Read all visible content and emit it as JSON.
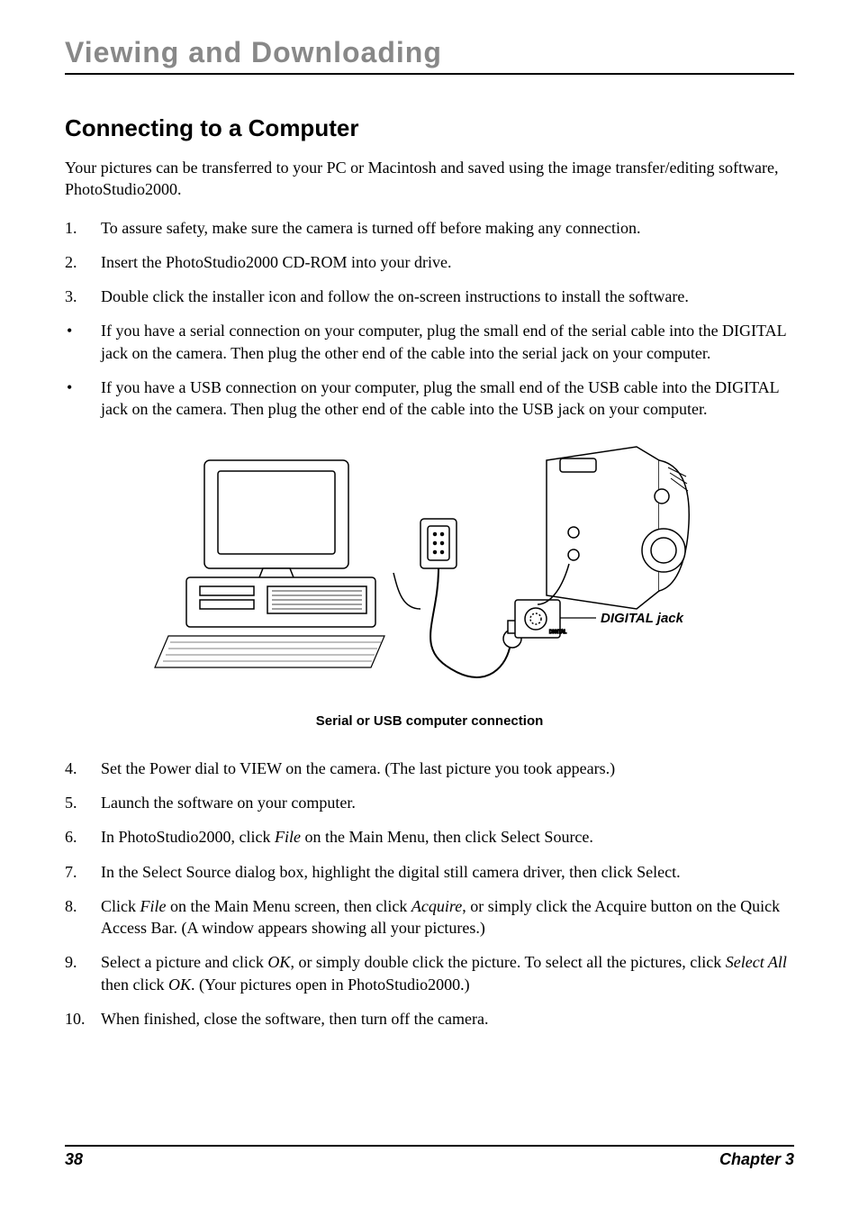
{
  "chapter_heading": "Viewing and Downloading",
  "section_heading": "Connecting to a Computer",
  "intro_text": "Your pictures can be transferred to your PC or Macintosh and saved using the image transfer/editing software, PhotoStudio2000.",
  "steps_top": [
    {
      "num": "1.",
      "text": "To assure safety, make sure the camera is turned off before making any connection."
    },
    {
      "num": "2.",
      "text": "Insert the PhotoStudio2000 CD-ROM into your drive."
    },
    {
      "num": "3.",
      "text": "Double click the installer icon and follow the on-screen instructions to install the software."
    }
  ],
  "bullets": [
    "If you have a serial connection on your computer, plug the small end of the serial cable into the DIGITAL jack on the camera. Then plug the other end of the cable into the serial jack on your computer.",
    "If you have a USB connection on your computer, plug the small end of the USB cable into the DIGITAL jack on the camera. Then plug the other end of the cable into the USB jack on your computer."
  ],
  "figure": {
    "jack_label": "DIGITAL jack",
    "caption": "Serial or USB computer connection",
    "digital_text": "DIGITAL"
  },
  "steps_bottom": [
    {
      "num": "4.",
      "parts": [
        {
          "t": "Set the Power dial to VIEW on the camera. (The last picture you took appears.)"
        }
      ]
    },
    {
      "num": "5.",
      "parts": [
        {
          "t": "Launch the software on your computer."
        }
      ]
    },
    {
      "num": "6.",
      "parts": [
        {
          "t": "In PhotoStudio2000, click "
        },
        {
          "t": "File",
          "i": true
        },
        {
          "t": " on the Main Menu, then click Select Source."
        }
      ]
    },
    {
      "num": "7.",
      "parts": [
        {
          "t": "In the Select Source dialog box, highlight the digital still camera driver, then click Select."
        }
      ]
    },
    {
      "num": "8.",
      "parts": [
        {
          "t": "Click "
        },
        {
          "t": "File",
          "i": true
        },
        {
          "t": " on the Main Menu screen, then click "
        },
        {
          "t": "Acquire",
          "i": true
        },
        {
          "t": ", or simply click the Acquire button on the Quick Access Bar. (A window appears showing all your pictures.)"
        }
      ]
    },
    {
      "num": "9.",
      "parts": [
        {
          "t": "Select a picture and click "
        },
        {
          "t": "OK",
          "i": true
        },
        {
          "t": ", or simply double click the picture. To select all the pictures, click "
        },
        {
          "t": "Select All ",
          "i": true
        },
        {
          "t": " then click "
        },
        {
          "t": "OK",
          "i": true
        },
        {
          "t": ". (Your pictures open in PhotoStudio2000.)"
        }
      ]
    },
    {
      "num": "10.",
      "parts": [
        {
          "t": "When finished, close the software, then turn off the camera."
        }
      ]
    }
  ],
  "footer": {
    "page_number": "38",
    "chapter_label": "Chapter 3"
  },
  "colors": {
    "heading_gray": "#888888",
    "text": "#000000",
    "background": "#ffffff",
    "rule": "#000000"
  }
}
